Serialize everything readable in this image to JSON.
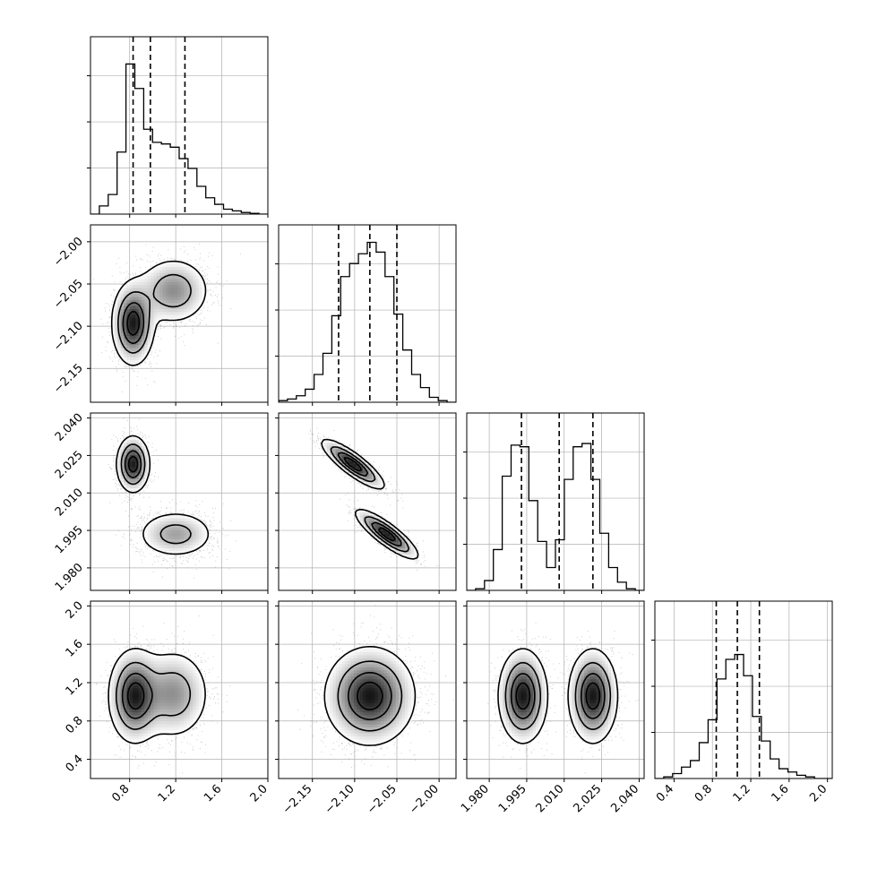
{
  "chart_data": {
    "type": "corner",
    "title": "",
    "grid": true,
    "colors": {
      "ink": "#000000",
      "grid": "#b0b0b0",
      "background": "#ffffff"
    },
    "parameters": [
      {
        "index": 0,
        "range": [
          0.46,
          2.0
        ],
        "ticks": [
          0.8,
          1.2,
          1.6,
          2.0
        ],
        "tick_labels": [
          "0.8",
          "1.2",
          "1.6",
          "2.0"
        ],
        "quantiles": [
          0.83,
          0.98,
          1.28
        ],
        "hist": {
          "start": 0.46,
          "step": 0.077,
          "counts": [
            0.0,
            0.05,
            0.12,
            0.38,
            0.92,
            0.77,
            0.52,
            0.44,
            0.43,
            0.41,
            0.34,
            0.28,
            0.17,
            0.1,
            0.06,
            0.03,
            0.02,
            0.01,
            0.005,
            0.0
          ]
        }
      },
      {
        "index": 1,
        "range": [
          -2.19,
          -1.98
        ],
        "ticks": [
          -2.15,
          -2.1,
          -2.05,
          -2.0
        ],
        "tick_labels": [
          "−2.15",
          "−2.10",
          "−2.05",
          "−2.00"
        ],
        "quantiles": [
          -2.119,
          -2.082,
          -2.05
        ],
        "hist": {
          "start": -2.19,
          "step": 0.0105,
          "counts": [
            0.01,
            0.02,
            0.04,
            0.08,
            0.17,
            0.3,
            0.53,
            0.77,
            0.85,
            0.91,
            0.98,
            0.92,
            0.77,
            0.54,
            0.32,
            0.17,
            0.09,
            0.03,
            0.01,
            0.0
          ]
        }
      },
      {
        "index": 2,
        "range": [
          1.971,
          2.042
        ],
        "ticks": [
          1.98,
          1.995,
          2.01,
          2.025,
          2.04
        ],
        "tick_labels": [
          "1.980",
          "1.995",
          "2.010",
          "2.025",
          "2.040"
        ],
        "quantiles": [
          1.9929,
          2.008,
          2.0215
        ],
        "hist": {
          "start": 1.971,
          "step": 0.00355,
          "counts": [
            0.0,
            0.01,
            0.06,
            0.25,
            0.7,
            0.89,
            0.88,
            0.55,
            0.3,
            0.14,
            0.31,
            0.68,
            0.88,
            0.9,
            0.68,
            0.35,
            0.14,
            0.05,
            0.01,
            0.0
          ]
        }
      },
      {
        "index": 3,
        "range": [
          0.2,
          2.05
        ],
        "ticks": [
          0.4,
          0.8,
          1.2,
          1.6,
          2.0
        ],
        "tick_labels": [
          "0.4",
          "0.8",
          "1.2",
          "1.6",
          "2.0"
        ],
        "quantiles": [
          0.84,
          1.06,
          1.29
        ],
        "hist": {
          "start": 0.2,
          "step": 0.0925,
          "counts": [
            0.0,
            0.01,
            0.03,
            0.07,
            0.11,
            0.22,
            0.36,
            0.61,
            0.73,
            0.76,
            0.63,
            0.38,
            0.23,
            0.12,
            0.06,
            0.04,
            0.02,
            0.01,
            0.0,
            0.0
          ]
        }
      }
    ],
    "pairs": [
      {
        "x": 0,
        "y": 1,
        "modes": [
          {
            "mean": [
              0.83,
              -2.097
            ],
            "sd": [
              0.09,
              0.024
            ],
            "corr": 0.0,
            "weight": 0.55
          },
          {
            "mean": [
              1.18,
              -2.058
            ],
            "sd": [
              0.16,
              0.02
            ],
            "corr": 0.0,
            "weight": 0.45
          }
        ]
      },
      {
        "x": 0,
        "y": 2,
        "modes": [
          {
            "mean": [
              0.83,
              2.0215
            ],
            "sd": [
              0.07,
              0.0055
            ],
            "corr": 0.0,
            "weight": 0.5
          },
          {
            "mean": [
              1.2,
              1.9935
            ],
            "sd": [
              0.17,
              0.0048
            ],
            "corr": 0.0,
            "weight": 0.5
          }
        ]
      },
      {
        "x": 1,
        "y": 2,
        "modes": [
          {
            "mean": [
              -2.102,
              2.0215
            ],
            "sd": [
              0.018,
              0.0048
            ],
            "corr": -0.85,
            "weight": 0.5
          },
          {
            "mean": [
              -2.062,
              1.9935
            ],
            "sd": [
              0.018,
              0.0048
            ],
            "corr": -0.85,
            "weight": 0.5
          }
        ]
      },
      {
        "x": 0,
        "y": 3,
        "modes": [
          {
            "mean": [
              0.84,
              1.06
            ],
            "sd": [
              0.11,
              0.24
            ],
            "corr": 0.0,
            "weight": 0.55
          },
          {
            "mean": [
              1.18,
              1.08
            ],
            "sd": [
              0.16,
              0.24
            ],
            "corr": 0.0,
            "weight": 0.45
          }
        ]
      },
      {
        "x": 1,
        "y": 3,
        "modes": [
          {
            "mean": [
              -2.082,
              1.06
            ],
            "sd": [
              0.026,
              0.25
            ],
            "corr": 0.0,
            "weight": 1.0
          }
        ]
      },
      {
        "x": 2,
        "y": 3,
        "modes": [
          {
            "mean": [
              1.9935,
              1.06
            ],
            "sd": [
              0.0048,
              0.24
            ],
            "corr": 0.0,
            "weight": 0.5
          },
          {
            "mean": [
              2.0215,
              1.06
            ],
            "sd": [
              0.0048,
              0.24
            ],
            "corr": 0.0,
            "weight": 0.5
          }
        ]
      }
    ]
  }
}
